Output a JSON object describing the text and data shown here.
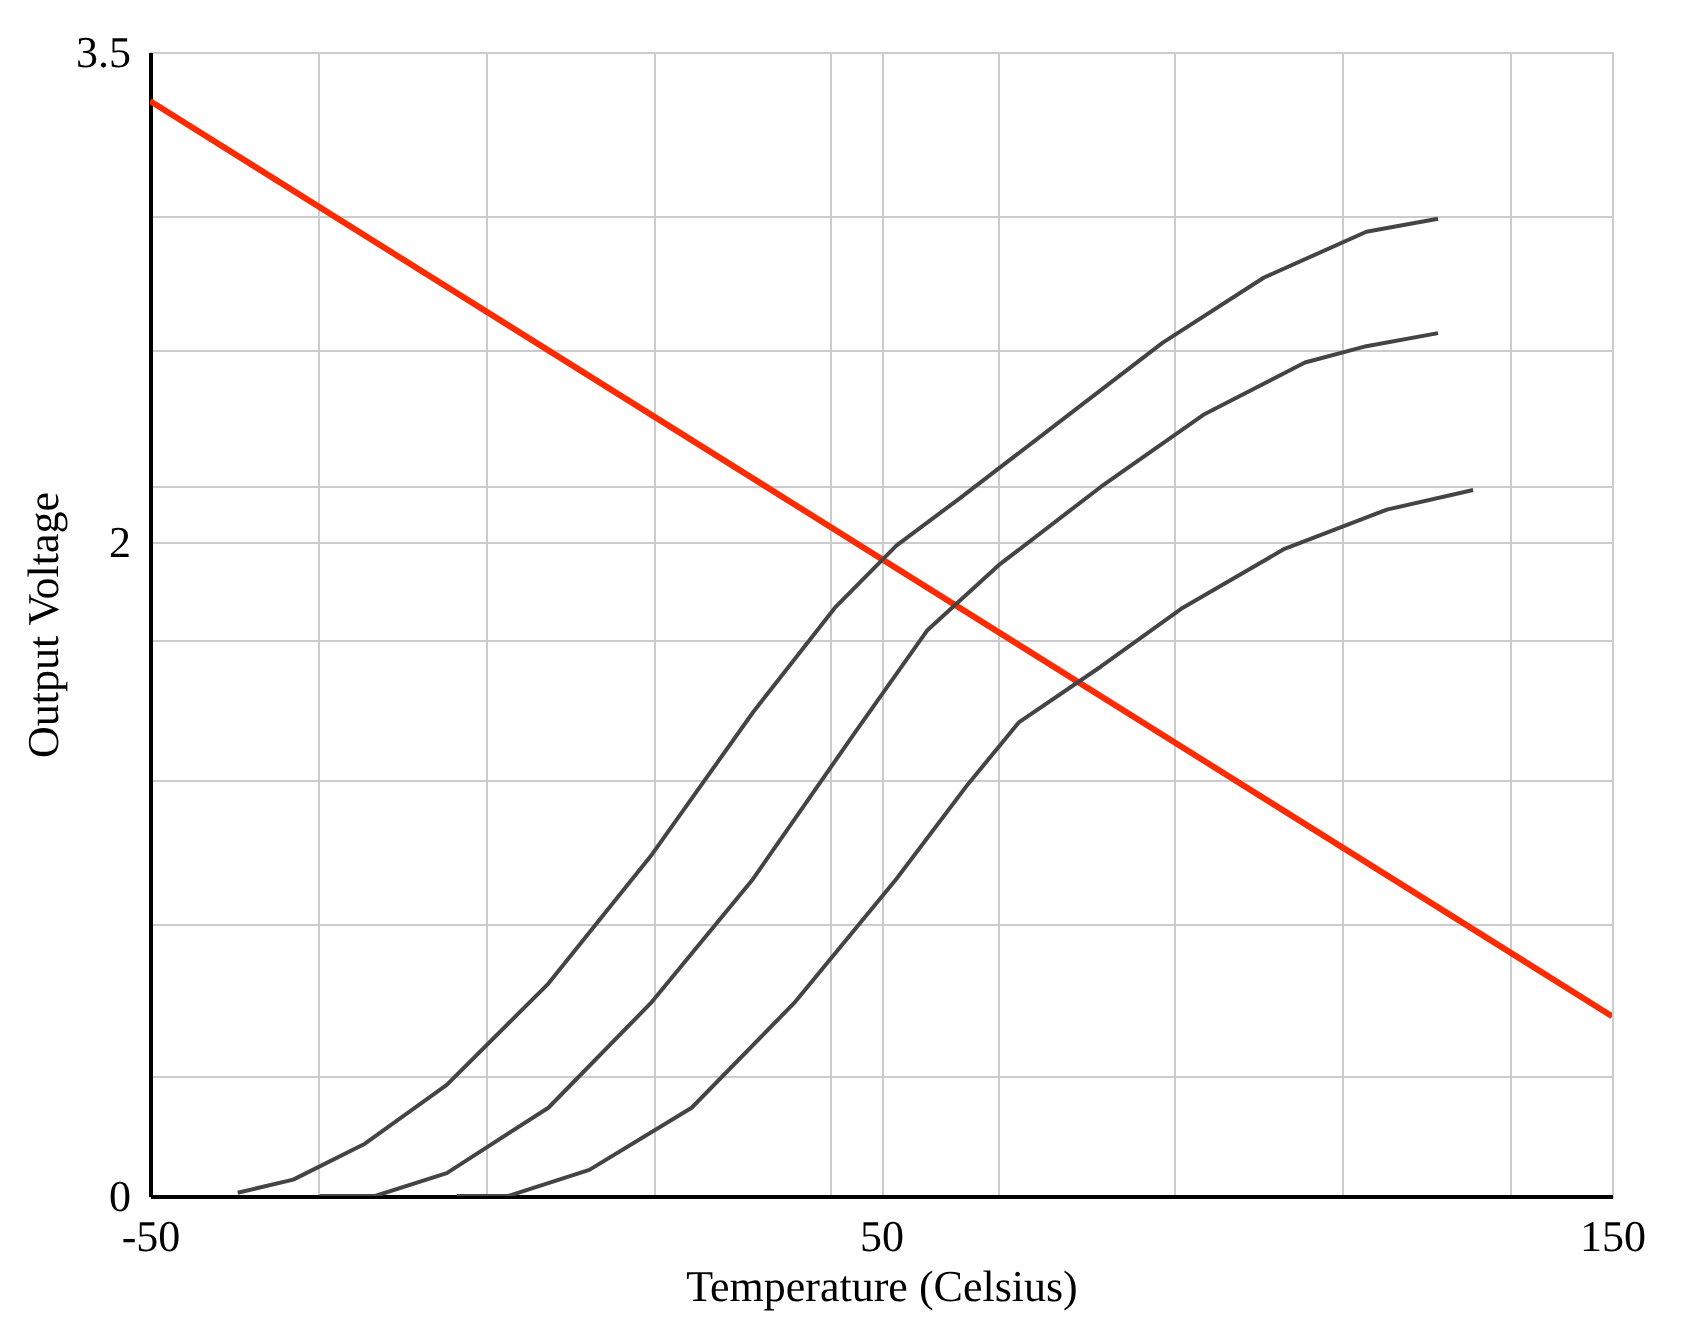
{
  "chart_data": {
    "type": "line",
    "xlabel": "Temperature (Celsius)",
    "ylabel": "Output Voltage",
    "xlim": [
      -50,
      150
    ],
    "ylim": [
      0,
      3.5
    ],
    "xticks": [
      -50,
      {
        "value": -27,
        "label": null
      },
      {
        "value": -4,
        "label": null
      },
      {
        "value": 19,
        "label": null
      },
      {
        "value": 43,
        "label": null
      },
      50,
      {
        "value": 66,
        "label": null
      },
      {
        "value": 90,
        "label": null
      },
      {
        "value": 113,
        "label": null
      },
      {
        "value": 136,
        "label": null
      },
      150
    ],
    "yticks": [
      0,
      {
        "value": 0.37,
        "label": null
      },
      {
        "value": 0.83,
        "label": null
      },
      {
        "value": 1.27,
        "label": null
      },
      {
        "value": 1.7,
        "label": null
      },
      2,
      {
        "value": 2.17,
        "label": null
      },
      {
        "value": 2.59,
        "label": null
      },
      {
        "value": 3.0,
        "label": null
      },
      3.5
    ],
    "grid": true,
    "marker": "none",
    "line_style": "solid",
    "series": [
      {
        "color": "#ff2a00",
        "x": [
          -50,
          150
        ],
        "values": [
          3.35,
          0.55
        ]
      },
      {
        "color": "#444444",
        "x": [
          -38.0,
          -30.4,
          -20.6,
          -9.4,
          4.5,
          18.5,
          32.5,
          43.7,
          52.1,
          60.5,
          74.5,
          88.5,
          102.4,
          116.4,
          126.2
        ],
        "values": [
          0.01,
          0.05,
          0.16,
          0.34,
          0.65,
          1.04,
          1.48,
          1.8,
          1.99,
          2.13,
          2.37,
          2.61,
          2.81,
          2.95,
          2.99
        ]
      },
      {
        "color": "#444444",
        "x": [
          -26.8,
          -19.2,
          -9.4,
          4.5,
          18.5,
          32.5,
          46.5,
          56.3,
          66.1,
          80.1,
          94.1,
          108.0,
          116.4,
          126.2
        ],
        "values": [
          0,
          0,
          0.07,
          0.27,
          0.59,
          0.97,
          1.42,
          1.73,
          1.93,
          2.17,
          2.39,
          2.55,
          2.6,
          2.64
        ]
      },
      {
        "color": "#444444",
        "x": [
          -8.0,
          -1.0,
          10.1,
          24.1,
          38.1,
          52.1,
          61.9,
          68.9,
          80.1,
          91.3,
          105.2,
          119.2,
          131.0
        ],
        "values": [
          0,
          0,
          0.08,
          0.27,
          0.59,
          0.97,
          1.26,
          1.45,
          1.62,
          1.8,
          1.98,
          2.1,
          2.16
        ]
      }
    ]
  }
}
